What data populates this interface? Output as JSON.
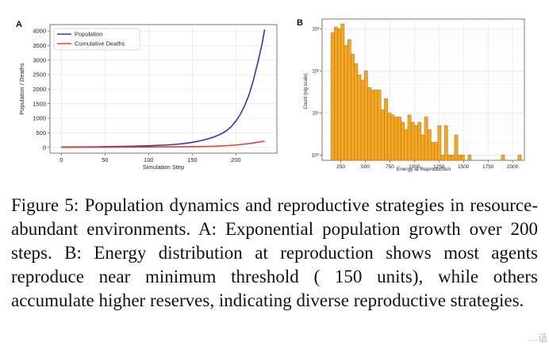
{
  "figure": {
    "panel_a": {
      "letter": "A"
    },
    "panel_b": {
      "letter": "B"
    }
  },
  "caption": "Figure 5: Population dynamics and reproductive strategies in resource-abundant environments. A: Exponential population growth over 200 steps. B: Energy distribution at reproduction shows most agents reproduce near minimum threshold ( 150 units), while others accumulate higher reserves, indicating diverse reproductive strategies.",
  "watermark": "…话",
  "colors": {
    "population": "#2f3aa6",
    "deaths": "#e0453a",
    "bars": "#f5a623",
    "bar_edge": "#b07310"
  },
  "chart_data": [
    {
      "type": "line",
      "panel": "A",
      "title": "",
      "xlabel": "Simulation Step",
      "ylabel": "Population / Deaths",
      "xlim": [
        -13,
        247
      ],
      "ylim": [
        -200,
        4220
      ],
      "xticks": [
        0,
        50,
        100,
        150,
        200
      ],
      "yticks": [
        0,
        500,
        1000,
        1500,
        2000,
        2500,
        3000,
        3500,
        4000
      ],
      "grid": true,
      "legend": "top-left",
      "series": [
        {
          "name": "Population",
          "color": "#2f3aa6",
          "points": [
            [
              0,
              10
            ],
            [
              20,
              12
            ],
            [
              40,
              18
            ],
            [
              60,
              26
            ],
            [
              80,
              38
            ],
            [
              100,
              55
            ],
            [
              120,
              80
            ],
            [
              130,
              100
            ],
            [
              140,
              130
            ],
            [
              150,
              170
            ],
            [
              160,
              230
            ],
            [
              170,
              310
            ],
            [
              175,
              360
            ],
            [
              180,
              420
            ],
            [
              185,
              490
            ],
            [
              190,
              590
            ],
            [
              195,
              720
            ],
            [
              200,
              900
            ],
            [
              205,
              1130
            ],
            [
              210,
              1430
            ],
            [
              215,
              1800
            ],
            [
              220,
              2300
            ],
            [
              225,
              2900
            ],
            [
              230,
              3550
            ],
            [
              233,
              4050
            ]
          ]
        },
        {
          "name": "Cumulative Deaths",
          "color": "#e0453a",
          "points": [
            [
              0,
              0
            ],
            [
              50,
              3
            ],
            [
              100,
              10
            ],
            [
              150,
              22
            ],
            [
              175,
              38
            ],
            [
              190,
              58
            ],
            [
              200,
              80
            ],
            [
              210,
              110
            ],
            [
              220,
              150
            ],
            [
              228,
              190
            ],
            [
              233,
              210
            ]
          ]
        }
      ]
    },
    {
      "type": "bar",
      "panel": "B",
      "title": "",
      "xlabel": "Energy at Reproduction",
      "ylabel": "Count (log scale)",
      "yscale": "log",
      "xlim": [
        60,
        2120
      ],
      "ylim": [
        0.75,
        1700
      ],
      "xticks": [
        250,
        500,
        750,
        1000,
        1250,
        1500,
        1750,
        2000
      ],
      "yticks": [
        1,
        10,
        100,
        1000
      ],
      "ytick_labels": [
        "10⁰",
        "10¹",
        "10²",
        "10³"
      ],
      "grid": true,
      "bin_width": 34,
      "bins": [
        [
          150,
          800
        ],
        [
          184,
          1100
        ],
        [
          218,
          1000
        ],
        [
          252,
          1300
        ],
        [
          286,
          400
        ],
        [
          320,
          550
        ],
        [
          354,
          250
        ],
        [
          388,
          150
        ],
        [
          422,
          80
        ],
        [
          456,
          60
        ],
        [
          490,
          100
        ],
        [
          524,
          40
        ],
        [
          558,
          35
        ],
        [
          592,
          35
        ],
        [
          626,
          35
        ],
        [
          660,
          12
        ],
        [
          694,
          22
        ],
        [
          728,
          10
        ],
        [
          762,
          9
        ],
        [
          796,
          8
        ],
        [
          830,
          8
        ],
        [
          864,
          6
        ],
        [
          898,
          4
        ],
        [
          932,
          9
        ],
        [
          966,
          6
        ],
        [
          1000,
          5
        ],
        [
          1034,
          6
        ],
        [
          1068,
          3
        ],
        [
          1102,
          8
        ],
        [
          1136,
          4
        ],
        [
          1170,
          2
        ],
        [
          1204,
          2
        ],
        [
          1238,
          5
        ],
        [
          1272,
          1
        ],
        [
          1306,
          5
        ],
        [
          1340,
          1
        ],
        [
          1374,
          1
        ],
        [
          1408,
          3
        ],
        [
          1442,
          1
        ],
        [
          1476,
          1
        ],
        [
          1544,
          1
        ],
        [
          1884,
          1
        ],
        [
          2054,
          1
        ]
      ]
    }
  ]
}
